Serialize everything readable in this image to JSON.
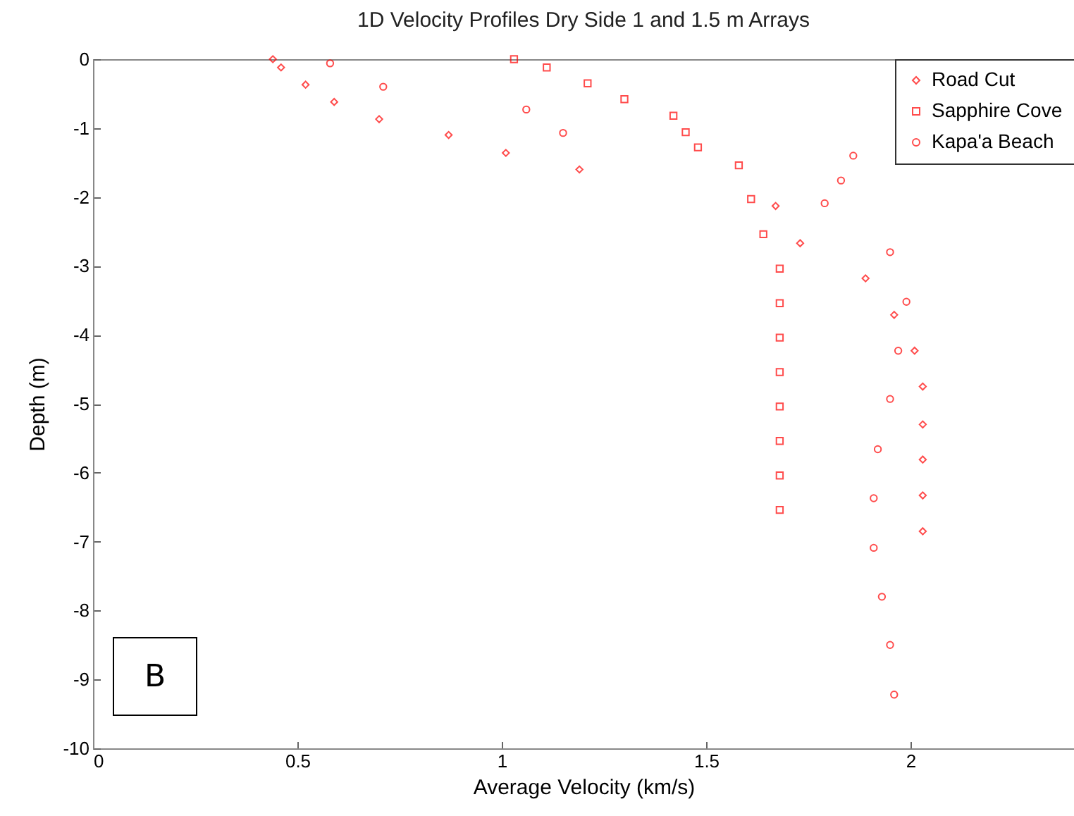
{
  "chart_data": {
    "type": "scatter",
    "title": "1D Velocity Profiles Dry Side 1 and 1.5 m Arrays",
    "xlabel": "Average Velocity (km/s)",
    "ylabel": "Depth (m)",
    "xlim": [
      0,
      2.4
    ],
    "ylim": [
      -10,
      0
    ],
    "xticks": [
      0,
      0.5,
      1,
      1.5,
      2
    ],
    "yticks": [
      -10,
      -9,
      -8,
      -7,
      -6,
      -5,
      -4,
      -3,
      -2,
      -1,
      0
    ],
    "legend": "top right",
    "annotations": [
      "B"
    ],
    "series": [
      {
        "name": "Road Cut",
        "color": "#ff0000",
        "marker": "diamond",
        "x": [
          0.44,
          0.46,
          0.52,
          0.59,
          0.7,
          0.87,
          1.01,
          1.19,
          1.67,
          1.73,
          1.89,
          1.96,
          2.01,
          2.03,
          2.03,
          2.03,
          2.03,
          2.03
        ],
        "values": [
          0,
          -0.12,
          -0.37,
          -0.62,
          -0.87,
          -1.1,
          -1.36,
          -1.6,
          -2.13,
          -2.67,
          -3.18,
          -3.71,
          -4.23,
          -4.75,
          -5.3,
          -5.81,
          -6.33,
          -6.85
        ]
      },
      {
        "name": "Sapphire Cove",
        "color": "#ff0000",
        "marker": "square",
        "x": [
          1.03,
          1.11,
          1.21,
          1.3,
          1.42,
          1.45,
          1.48,
          1.58,
          1.61,
          1.64,
          1.68,
          1.68,
          1.68,
          1.68,
          1.68,
          1.68,
          1.68,
          1.68
        ],
        "values": [
          0,
          -0.12,
          -0.35,
          -0.58,
          -0.82,
          -1.06,
          -1.28,
          -1.54,
          -2.03,
          -2.54,
          -3.04,
          -3.54,
          -4.04,
          -4.54,
          -5.04,
          -5.54,
          -6.04,
          -6.54
        ]
      },
      {
        "name": "Kapa'a Beach",
        "color": "#ff0000",
        "marker": "circle",
        "x": [
          0.58,
          0.71,
          1.06,
          1.15,
          1.86,
          1.83,
          1.79,
          1.95,
          1.99,
          1.97,
          1.95,
          1.92,
          1.91,
          1.91,
          1.93,
          1.95,
          1.96
        ],
        "values": [
          -0.06,
          -0.4,
          -0.73,
          -1.07,
          -1.4,
          -1.76,
          -2.09,
          -2.8,
          -3.52,
          -4.23,
          -4.93,
          -5.66,
          -6.37,
          -7.09,
          -7.8,
          -8.5,
          -9.22
        ]
      }
    ]
  }
}
